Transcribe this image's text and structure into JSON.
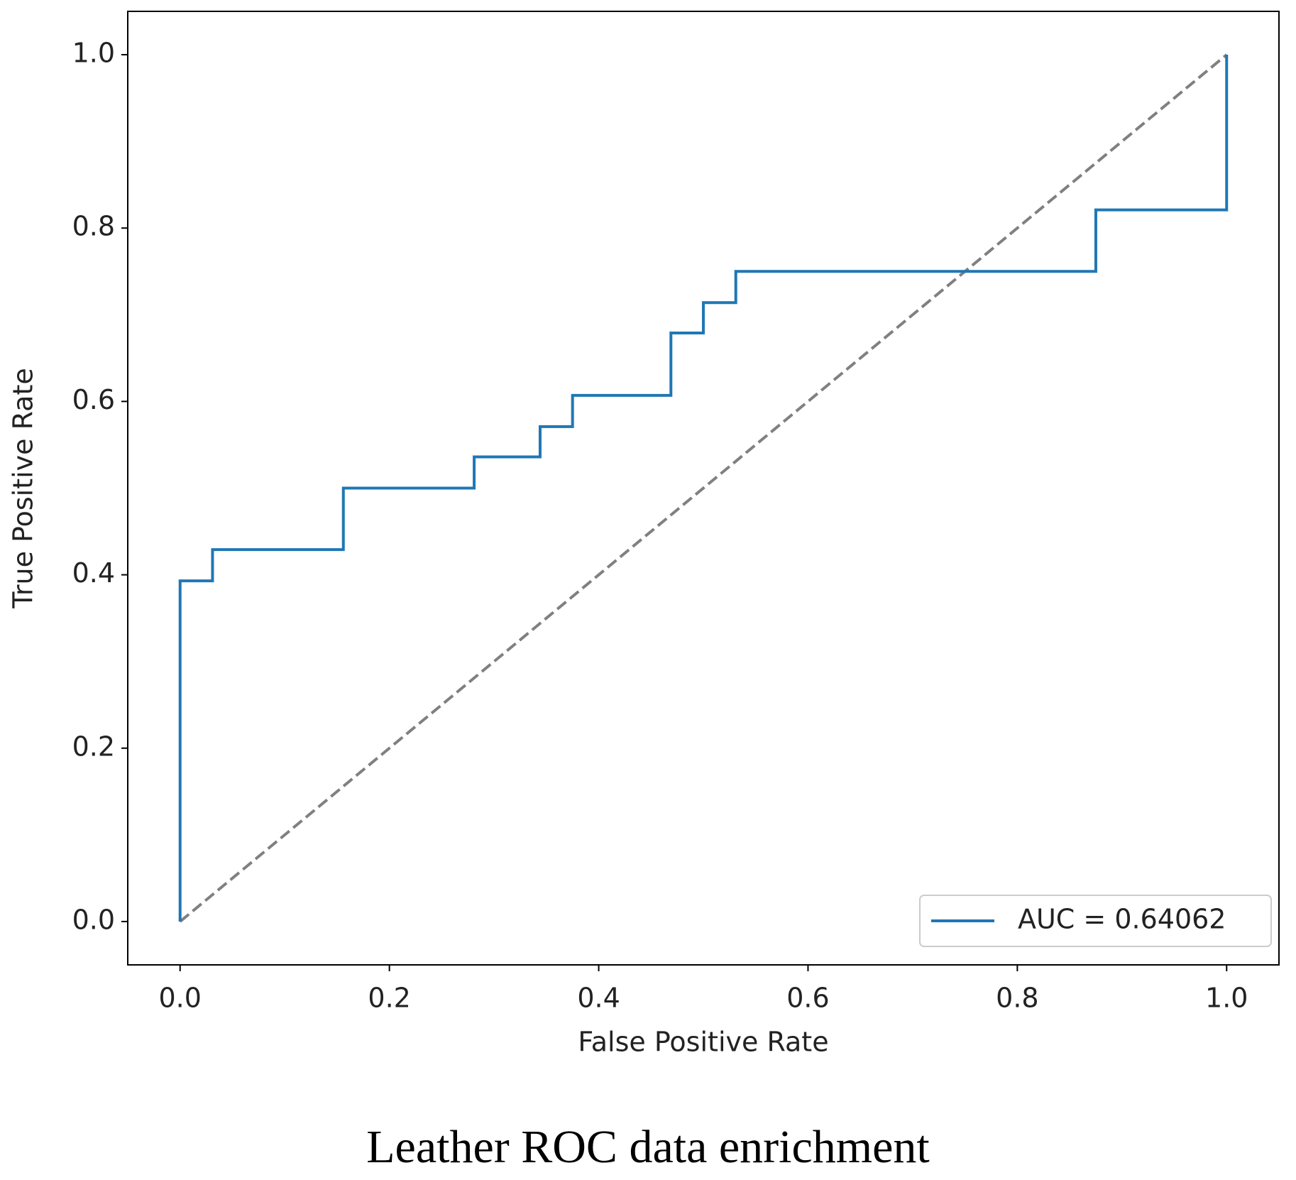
{
  "chart_data": {
    "type": "line",
    "caption": "Leather ROC data enrichment",
    "xlabel": "False Positive Rate",
    "ylabel": "True Positive Rate",
    "xlim": [
      -0.05,
      1.05
    ],
    "ylim": [
      -0.05,
      1.05
    ],
    "xticks": [
      {
        "value": 0,
        "label": "0.0"
      },
      0.2,
      0.4,
      0.6,
      0.8,
      {
        "value": 1,
        "label": "1.0"
      }
    ],
    "yticks": [
      {
        "value": 0,
        "label": "0.0"
      },
      0.2,
      0.4,
      0.6,
      0.8,
      {
        "value": 1,
        "label": "1.0"
      }
    ],
    "legend": "lower right",
    "series": [
      {
        "name": "AUC = 0.64062",
        "color": "#1f77b4",
        "dashed": false,
        "x": [
          0,
          0,
          0.031,
          0.031,
          0.156,
          0.156,
          0.281,
          0.281,
          0.344,
          0.344,
          0.375,
          0.375,
          0.469,
          0.469,
          0.5,
          0.5,
          0.531,
          0.531,
          0.875,
          0.875,
          1,
          1
        ],
        "values": [
          0,
          0.393,
          0.393,
          0.429,
          0.429,
          0.5,
          0.5,
          0.536,
          0.536,
          0.571,
          0.571,
          0.607,
          0.607,
          0.679,
          0.679,
          0.714,
          0.714,
          0.75,
          0.75,
          0.821,
          0.821,
          1
        ]
      },
      {
        "color": "#808080",
        "dashed": true,
        "x": [
          0,
          1
        ],
        "values": [
          0,
          1
        ]
      }
    ]
  }
}
